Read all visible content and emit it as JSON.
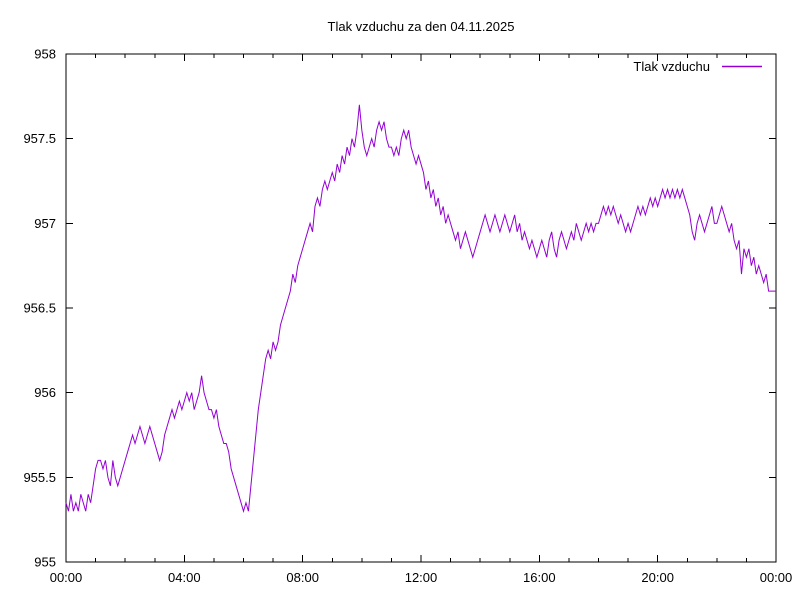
{
  "chart_data": {
    "type": "line",
    "title": "Tlak vzduchu za den 04.11.2025",
    "xlabel": "",
    "ylabel": "",
    "ylim": [
      955,
      958
    ],
    "xlim_hours": [
      0,
      24
    ],
    "grid": false,
    "legend_position": "top-right-inside",
    "line_color": "#9400d3",
    "axis_color": "#000000",
    "x_major_ticks_hours": [
      0,
      4,
      8,
      12,
      16,
      20,
      24
    ],
    "x_tick_labels": [
      "00:00",
      "04:00",
      "08:00",
      "12:00",
      "16:00",
      "20:00",
      "00:00"
    ],
    "x_minor_tick_interval_hours": 1,
    "y_ticks": [
      955,
      955.5,
      956,
      956.5,
      957,
      957.5,
      958
    ],
    "y_tick_labels": [
      "955",
      "955.5",
      "956",
      "956.5",
      "957",
      "957.5",
      "958"
    ],
    "sample_interval_minutes": 5,
    "series": [
      {
        "name": "Tlak vzduchu",
        "start_time": "00:00",
        "values": [
          955.35,
          955.3,
          955.4,
          955.3,
          955.35,
          955.3,
          955.4,
          955.35,
          955.3,
          955.4,
          955.35,
          955.45,
          955.55,
          955.6,
          955.6,
          955.55,
          955.6,
          955.5,
          955.45,
          955.6,
          955.5,
          955.45,
          955.5,
          955.55,
          955.6,
          955.65,
          955.7,
          955.75,
          955.7,
          955.75,
          955.8,
          955.75,
          955.7,
          955.75,
          955.8,
          955.75,
          955.7,
          955.65,
          955.6,
          955.65,
          955.75,
          955.8,
          955.85,
          955.9,
          955.85,
          955.9,
          955.95,
          955.9,
          955.95,
          956.0,
          955.95,
          956.0,
          955.9,
          955.95,
          956.0,
          956.1,
          956.0,
          955.95,
          955.9,
          955.9,
          955.85,
          955.9,
          955.8,
          955.75,
          955.7,
          955.7,
          955.65,
          955.55,
          955.5,
          955.45,
          955.4,
          955.35,
          955.3,
          955.35,
          955.3,
          955.45,
          955.6,
          955.75,
          955.9,
          956.0,
          956.1,
          956.2,
          956.25,
          956.2,
          956.3,
          956.25,
          956.3,
          956.4,
          956.45,
          956.5,
          956.55,
          956.6,
          956.7,
          956.65,
          956.75,
          956.8,
          956.85,
          956.9,
          956.95,
          957.0,
          956.95,
          957.1,
          957.15,
          957.1,
          957.2,
          957.25,
          957.2,
          957.25,
          957.3,
          957.25,
          957.35,
          957.3,
          957.4,
          957.35,
          957.45,
          957.4,
          957.5,
          957.45,
          957.55,
          957.7,
          957.55,
          957.45,
          957.4,
          957.45,
          957.5,
          957.45,
          957.55,
          957.6,
          957.55,
          957.6,
          957.5,
          957.45,
          957.45,
          957.4,
          957.45,
          957.4,
          957.5,
          957.55,
          957.5,
          957.55,
          957.45,
          957.4,
          957.35,
          957.4,
          957.35,
          957.3,
          957.2,
          957.25,
          957.15,
          957.2,
          957.1,
          957.15,
          957.05,
          957.1,
          957.0,
          957.05,
          957.0,
          956.95,
          956.9,
          956.95,
          956.85,
          956.9,
          956.95,
          956.9,
          956.85,
          956.8,
          956.85,
          956.9,
          956.95,
          957.0,
          957.05,
          957.0,
          956.95,
          957.0,
          957.05,
          957.0,
          956.95,
          957.0,
          957.05,
          957.0,
          956.95,
          957.0,
          957.05,
          956.95,
          957.0,
          956.9,
          956.95,
          956.9,
          956.85,
          956.9,
          956.85,
          956.8,
          956.85,
          956.9,
          956.85,
          956.8,
          956.9,
          956.95,
          956.85,
          956.8,
          956.9,
          956.95,
          956.9,
          956.85,
          956.9,
          956.95,
          956.9,
          957.0,
          956.95,
          956.9,
          956.95,
          957.0,
          956.95,
          957.0,
          956.95,
          957.0,
          957.0,
          957.05,
          957.1,
          957.05,
          957.1,
          957.05,
          957.1,
          957.05,
          957.0,
          957.05,
          957.0,
          956.95,
          957.0,
          956.95,
          957.0,
          957.05,
          957.1,
          957.05,
          957.1,
          957.05,
          957.1,
          957.15,
          957.1,
          957.15,
          957.1,
          957.15,
          957.2,
          957.15,
          957.2,
          957.15,
          957.2,
          957.15,
          957.2,
          957.15,
          957.2,
          957.15,
          957.1,
          957.05,
          956.95,
          956.9,
          957.0,
          957.05,
          957.0,
          956.95,
          957.0,
          957.05,
          957.1,
          957.0,
          957.0,
          957.05,
          957.1,
          957.05,
          957.0,
          956.95,
          957.0,
          956.9,
          956.85,
          956.9,
          956.7,
          956.85,
          956.8,
          956.85,
          956.75,
          956.8,
          956.7,
          956.75,
          956.7,
          956.65,
          956.7,
          956.6,
          956.6,
          956.6,
          956.6
        ]
      }
    ]
  }
}
